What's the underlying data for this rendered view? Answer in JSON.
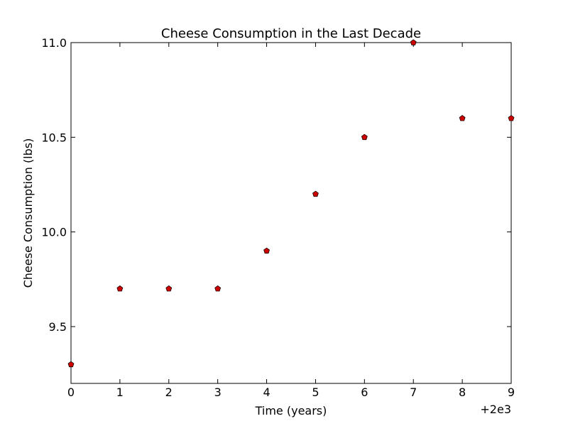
{
  "chart_data": {
    "type": "scatter",
    "title": "Cheese Consumption in the Last Decade",
    "xlabel": "Time (years)",
    "ylabel": "Cheese Consumption (lbs)",
    "x_offset_label": "+2e3",
    "x_offset": 2000,
    "xlim": [
      2000,
      2009
    ],
    "ylim": [
      9.2,
      11.0
    ],
    "x_ticks": [
      2000,
      2001,
      2002,
      2003,
      2004,
      2005,
      2006,
      2007,
      2008,
      2009
    ],
    "x_tick_labels": [
      "0",
      "1",
      "2",
      "3",
      "4",
      "5",
      "6",
      "7",
      "8",
      "9"
    ],
    "y_ticks": [
      9.5,
      10.0,
      10.5,
      11.0
    ],
    "y_tick_labels": [
      "9.5",
      "10.0",
      "10.5",
      "11.0"
    ],
    "grid": false,
    "series": [
      {
        "x": [
          2000,
          2001,
          2002,
          2003,
          2004,
          2005,
          2006,
          2007,
          2008,
          2009
        ],
        "values": [
          9.3,
          9.7,
          9.7,
          9.7,
          9.9,
          10.2,
          10.5,
          11.0,
          10.6,
          10.6
        ],
        "marker": "pentagon",
        "color": "#cc0000"
      }
    ]
  }
}
